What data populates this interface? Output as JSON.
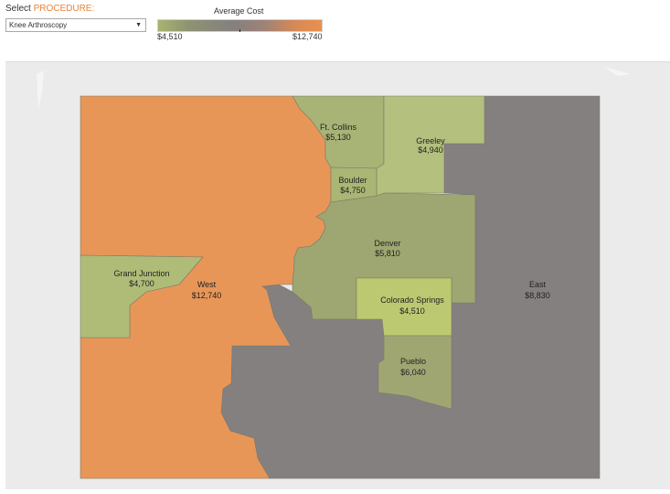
{
  "filter": {
    "label_prefix": "Select ",
    "label_accent": "PROCEDURE:",
    "selected": "Knee Arthroscopy",
    "caret": "▼"
  },
  "legend": {
    "title": "Average Cost",
    "min": "$4,510",
    "max": "$12,740",
    "min_color": "#a8b36e",
    "mid_color": "#848080",
    "max_color": "#e8914f"
  },
  "regions": [
    {
      "name": "Ft. Collins",
      "value": "$5,130",
      "cost": 5130,
      "color": "#a8b376"
    },
    {
      "name": "Greeley",
      "value": "$4,940",
      "cost": 4940,
      "color": "#b3c07e"
    },
    {
      "name": "Boulder",
      "value": "$4,750",
      "cost": 4750,
      "color": "#a9b674"
    },
    {
      "name": "Denver",
      "value": "$5,810",
      "cost": 5810,
      "color": "#9ea671"
    },
    {
      "name": "Grand Junction",
      "value": "$4,700",
      "cost": 4700,
      "color": "#afbc78"
    },
    {
      "name": "West",
      "value": "$12,740",
      "cost": 12740,
      "color": "#e89658"
    },
    {
      "name": "Colorado Springs",
      "value": "$4,510",
      "cost": 4510,
      "color": "#bdc970"
    },
    {
      "name": "Pueblo",
      "value": "$6,040",
      "cost": 6040,
      "color": "#a0a672"
    },
    {
      "name": "East",
      "value": "$8,830",
      "cost": 8830,
      "color": "#848080"
    }
  ]
}
